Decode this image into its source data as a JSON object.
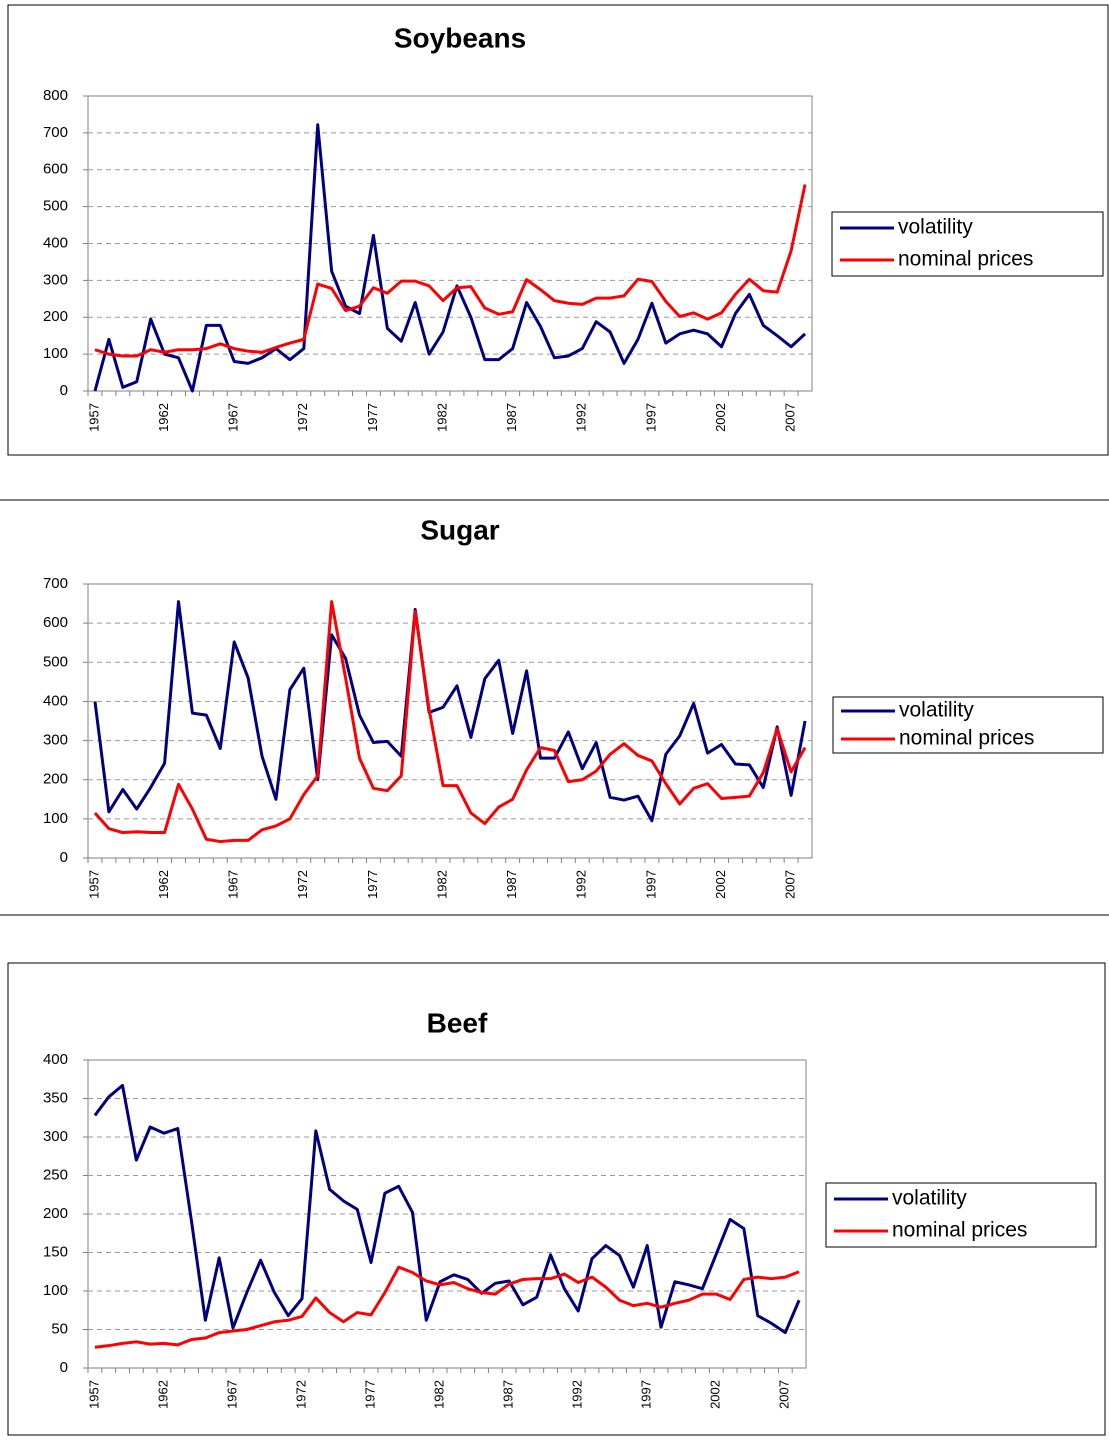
{
  "chart_data": [
    {
      "type": "line",
      "title": "Soybeans",
      "categories": [
        "1957",
        null,
        null,
        null,
        null,
        "1962",
        null,
        null,
        null,
        null,
        "1967",
        null,
        null,
        null,
        null,
        "1972",
        null,
        null,
        null,
        null,
        "1977",
        null,
        null,
        null,
        null,
        "1982",
        null,
        null,
        null,
        null,
        "1987",
        null,
        null,
        null,
        null,
        "1992",
        null,
        null,
        null,
        null,
        "1997",
        null,
        null,
        null,
        null,
        "2002",
        null,
        null,
        null,
        null,
        "2007",
        null
      ],
      "series": [
        {
          "name": "volatility",
          "color": "#000080",
          "values": [
            0,
            140,
            10,
            25,
            195,
            100,
            90,
            0,
            178,
            178,
            80,
            75,
            90,
            115,
            85,
            115,
            722,
            325,
            230,
            210,
            422,
            170,
            135,
            240,
            100,
            160,
            285,
            200,
            85,
            85,
            115,
            240,
            175,
            90,
            95,
            115,
            188,
            160,
            75,
            140,
            238,
            130,
            155,
            165,
            155,
            120,
            210,
            262,
            178,
            150,
            120,
            155
          ]
        },
        {
          "name": "nominal prices",
          "color": "#ff0000",
          "values": [
            112,
            100,
            95,
            95,
            112,
            105,
            112,
            112,
            115,
            128,
            115,
            108,
            105,
            118,
            130,
            140,
            290,
            278,
            218,
            230,
            280,
            265,
            298,
            298,
            285,
            245,
            280,
            283,
            225,
            208,
            215,
            302,
            275,
            245,
            238,
            235,
            252,
            252,
            258,
            303,
            297,
            243,
            202,
            212,
            195,
            212,
            262,
            303,
            272,
            268,
            380,
            560
          ]
        }
      ],
      "ylim": [
        0,
        800
      ],
      "yticks": [
        0,
        100,
        200,
        300,
        400,
        500,
        600,
        700,
        800
      ],
      "grid": true,
      "legend": "right"
    },
    {
      "type": "line",
      "title": "Sugar",
      "categories": [
        "1957",
        null,
        null,
        null,
        null,
        "1962",
        null,
        null,
        null,
        null,
        "1967",
        null,
        null,
        null,
        null,
        "1972",
        null,
        null,
        null,
        null,
        "1977",
        null,
        null,
        null,
        null,
        "1982",
        null,
        null,
        null,
        null,
        "1987",
        null,
        null,
        null,
        null,
        "1992",
        null,
        null,
        null,
        null,
        "1997",
        null,
        null,
        null,
        null,
        "2002",
        null,
        null,
        null,
        null,
        "2007",
        null
      ],
      "series": [
        {
          "name": "volatility",
          "color": "#000080",
          "values": [
            400,
            118,
            175,
            125,
            180,
            242,
            655,
            370,
            365,
            280,
            552,
            460,
            260,
            150,
            430,
            485,
            200,
            570,
            510,
            365,
            295,
            298,
            260,
            635,
            372,
            385,
            440,
            308,
            458,
            505,
            318,
            478,
            255,
            255,
            322,
            228,
            295,
            155,
            148,
            158,
            95,
            265,
            312,
            395,
            268,
            290,
            240,
            238,
            180,
            335,
            160,
            350
          ]
        },
        {
          "name": "nominal prices",
          "color": "#ff0000",
          "values": [
            115,
            75,
            65,
            67,
            65,
            65,
            188,
            125,
            48,
            42,
            45,
            45,
            72,
            82,
            100,
            162,
            210,
            655,
            460,
            255,
            178,
            172,
            210,
            630,
            380,
            185,
            185,
            115,
            88,
            130,
            150,
            225,
            282,
            275,
            195,
            200,
            222,
            265,
            292,
            262,
            248,
            190,
            138,
            178,
            190,
            152,
            155,
            158,
            218,
            330,
            220,
            282
          ]
        }
      ],
      "ylim": [
        0,
        700
      ],
      "yticks": [
        0,
        100,
        200,
        300,
        400,
        500,
        600,
        700
      ],
      "grid": true,
      "legend": "right"
    },
    {
      "type": "line",
      "title": "Beef",
      "categories": [
        "1957",
        null,
        null,
        null,
        null,
        "1962",
        null,
        null,
        null,
        null,
        "1967",
        null,
        null,
        null,
        null,
        "1972",
        null,
        null,
        null,
        null,
        "1977",
        null,
        null,
        null,
        null,
        "1982",
        null,
        null,
        null,
        null,
        "1987",
        null,
        null,
        null,
        null,
        "1992",
        null,
        null,
        null,
        null,
        "1997",
        null,
        null,
        null,
        null,
        "2002",
        null,
        null,
        null,
        null,
        "2007",
        null
      ],
      "series": [
        {
          "name": "volatility",
          "color": "#000080",
          "values": [
            328,
            352,
            367,
            270,
            313,
            305,
            311,
            190,
            62,
            143,
            52,
            98,
            140,
            98,
            68,
            90,
            308,
            232,
            217,
            206,
            137,
            227,
            236,
            202,
            62,
            112,
            121,
            115,
            97,
            110,
            113,
            82,
            92,
            147,
            103,
            74,
            142,
            159,
            146,
            105,
            159,
            53,
            112,
            108,
            103,
            148,
            193,
            181,
            68,
            58,
            46,
            88
          ]
        },
        {
          "name": "nominal prices",
          "color": "#ff0000",
          "values": [
            27,
            29,
            32,
            34,
            31,
            32,
            30,
            37,
            39,
            46,
            48,
            50,
            55,
            60,
            62,
            67,
            91,
            72,
            60,
            72,
            69,
            98,
            131,
            124,
            113,
            108,
            111,
            103,
            98,
            96,
            109,
            115,
            116,
            116,
            122,
            111,
            118,
            105,
            88,
            81,
            84,
            79,
            84,
            88,
            96,
            96,
            89,
            115,
            118,
            116,
            118,
            125
          ]
        }
      ],
      "ylim": [
        0,
        400
      ],
      "yticks": [
        0,
        50,
        100,
        150,
        200,
        250,
        300,
        350,
        400
      ],
      "grid": true,
      "legend": "right"
    }
  ]
}
